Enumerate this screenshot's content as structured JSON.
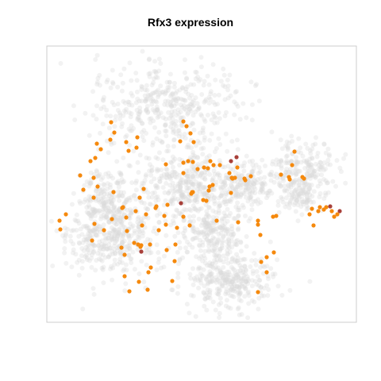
{
  "chart_data": {
    "type": "scatter",
    "title": "Rfx3 expression",
    "xlabel": "",
    "ylabel": "",
    "xlim": [
      0,
      390
    ],
    "ylim": [
      0,
      348
    ],
    "axes_visible": false,
    "grid": false,
    "legend": "none",
    "colors": {
      "background_cells": "#d9d9d9",
      "low_expression": "#f5890d",
      "high_expression": "#a8403a",
      "frame": "#cccccc"
    },
    "background_clusters": [
      {
        "name": "",
        "cx": 78,
        "cy": 245,
        "rx": 58,
        "ry": 46,
        "count": 360,
        "seed": 11
      },
      {
        "name": "",
        "cx": 80,
        "cy": 195,
        "rx": 45,
        "ry": 42,
        "count": 220,
        "seed": 12
      },
      {
        "name": "",
        "cx": 230,
        "cy": 295,
        "rx": 58,
        "ry": 40,
        "count": 320,
        "seed": 13
      },
      {
        "name": "",
        "cx": 205,
        "cy": 230,
        "rx": 45,
        "ry": 42,
        "count": 240,
        "seed": 14
      },
      {
        "name": "",
        "cx": 170,
        "cy": 175,
        "rx": 55,
        "ry": 42,
        "count": 300,
        "seed": 15
      },
      {
        "name": "",
        "cx": 248,
        "cy": 175,
        "rx": 36,
        "ry": 32,
        "count": 180,
        "seed": 16
      },
      {
        "name": "",
        "cx": 150,
        "cy": 75,
        "rx": 90,
        "ry": 55,
        "count": 420,
        "seed": 17
      },
      {
        "name": "",
        "cx": 320,
        "cy": 155,
        "rx": 48,
        "ry": 40,
        "count": 210,
        "seed": 18
      },
      {
        "name": "",
        "cx": 315,
        "cy": 190,
        "rx": 25,
        "ry": 22,
        "count": 80,
        "seed": 19
      }
    ],
    "points": [
      {
        "x": 127,
        "y": 307,
        "level": "low"
      },
      {
        "x": 131,
        "y": 279,
        "level": "low"
      },
      {
        "x": 161,
        "y": 271,
        "level": "low"
      },
      {
        "x": 98,
        "y": 263,
        "level": "low"
      },
      {
        "x": 94,
        "y": 254,
        "level": "low"
      },
      {
        "x": 115,
        "y": 250,
        "level": "low"
      },
      {
        "x": 119,
        "y": 251,
        "level": "low"
      },
      {
        "x": 110,
        "y": 248,
        "level": "low"
      },
      {
        "x": 119,
        "y": 259,
        "level": "high"
      },
      {
        "x": 141,
        "y": 232,
        "level": "low"
      },
      {
        "x": 150,
        "y": 225,
        "level": "low"
      },
      {
        "x": 57,
        "y": 245,
        "level": "low"
      },
      {
        "x": 60,
        "y": 224,
        "level": "low"
      },
      {
        "x": 24,
        "y": 212,
        "level": "low"
      },
      {
        "x": 17,
        "y": 231,
        "level": "low"
      },
      {
        "x": 16,
        "y": 220,
        "level": "low"
      },
      {
        "x": 72,
        "y": 232,
        "level": "low"
      },
      {
        "x": 101,
        "y": 233,
        "level": "low"
      },
      {
        "x": 120,
        "y": 226,
        "level": "low"
      },
      {
        "x": 82,
        "y": 218,
        "level": "low"
      },
      {
        "x": 95,
        "y": 204,
        "level": "low"
      },
      {
        "x": 112,
        "y": 208,
        "level": "low"
      },
      {
        "x": 125,
        "y": 212,
        "level": "low"
      },
      {
        "x": 137,
        "y": 204,
        "level": "low"
      },
      {
        "x": 138,
        "y": 202,
        "level": "low"
      },
      {
        "x": 152,
        "y": 200,
        "level": "low"
      },
      {
        "x": 84,
        "y": 184,
        "level": "low"
      },
      {
        "x": 59,
        "y": 191,
        "level": "low"
      },
      {
        "x": 42,
        "y": 163,
        "level": "low"
      },
      {
        "x": 64,
        "y": 177,
        "level": "low"
      },
      {
        "x": 59,
        "y": 166,
        "level": "low"
      },
      {
        "x": 46,
        "y": 181,
        "level": "low"
      },
      {
        "x": 55,
        "y": 145,
        "level": "low"
      },
      {
        "x": 61,
        "y": 141,
        "level": "low"
      },
      {
        "x": 68,
        "y": 130,
        "level": "low"
      },
      {
        "x": 63,
        "y": 123,
        "level": "low"
      },
      {
        "x": 80,
        "y": 118,
        "level": "low"
      },
      {
        "x": 85,
        "y": 109,
        "level": "low"
      },
      {
        "x": 81,
        "y": 96,
        "level": "low"
      },
      {
        "x": 100,
        "y": 121,
        "level": "low"
      },
      {
        "x": 103,
        "y": 132,
        "level": "low"
      },
      {
        "x": 114,
        "y": 115,
        "level": "low"
      },
      {
        "x": 113,
        "y": 128,
        "level": "low"
      },
      {
        "x": 168,
        "y": 120,
        "level": "low"
      },
      {
        "x": 185,
        "y": 121,
        "level": "low"
      },
      {
        "x": 181,
        "y": 110,
        "level": "low"
      },
      {
        "x": 176,
        "y": 101,
        "level": "low"
      },
      {
        "x": 172,
        "y": 95,
        "level": "low"
      },
      {
        "x": 172,
        "y": 147,
        "level": "low"
      },
      {
        "x": 172,
        "y": 160,
        "level": "low"
      },
      {
        "x": 178,
        "y": 145,
        "level": "low"
      },
      {
        "x": 184,
        "y": 146,
        "level": "low"
      },
      {
        "x": 190,
        "y": 155,
        "level": "low"
      },
      {
        "x": 198,
        "y": 153,
        "level": "low"
      },
      {
        "x": 203,
        "y": 154,
        "level": "low"
      },
      {
        "x": 210,
        "y": 150,
        "level": "low"
      },
      {
        "x": 206,
        "y": 145,
        "level": "low"
      },
      {
        "x": 218,
        "y": 150,
        "level": "low"
      },
      {
        "x": 230,
        "y": 160,
        "level": "low"
      },
      {
        "x": 232,
        "y": 145,
        "level": "high"
      },
      {
        "x": 239,
        "y": 140,
        "level": "high"
      },
      {
        "x": 205,
        "y": 177,
        "level": "low"
      },
      {
        "x": 234,
        "y": 167,
        "level": "low"
      },
      {
        "x": 232,
        "y": 185,
        "level": "low"
      },
      {
        "x": 233,
        "y": 166,
        "level": "low"
      },
      {
        "x": 257,
        "y": 164,
        "level": "low"
      },
      {
        "x": 250,
        "y": 169,
        "level": "low"
      },
      {
        "x": 237,
        "y": 166,
        "level": "low"
      },
      {
        "x": 240,
        "y": 153,
        "level": "low"
      },
      {
        "x": 249,
        "y": 167,
        "level": "low"
      },
      {
        "x": 204,
        "y": 182,
        "level": "low"
      },
      {
        "x": 184,
        "y": 184,
        "level": "low"
      },
      {
        "x": 182,
        "y": 186,
        "level": "low"
      },
      {
        "x": 172,
        "y": 215,
        "level": "low"
      },
      {
        "x": 169,
        "y": 198,
        "level": "high"
      },
      {
        "x": 180,
        "y": 226,
        "level": "low"
      },
      {
        "x": 164,
        "y": 229,
        "level": "low"
      },
      {
        "x": 148,
        "y": 214,
        "level": "low"
      },
      {
        "x": 122,
        "y": 180,
        "level": "low"
      },
      {
        "x": 117,
        "y": 191,
        "level": "low"
      },
      {
        "x": 96,
        "y": 203,
        "level": "low"
      },
      {
        "x": 100,
        "y": 216,
        "level": "low"
      },
      {
        "x": 150,
        "y": 149,
        "level": "low"
      },
      {
        "x": 183,
        "y": 184,
        "level": "low"
      },
      {
        "x": 197,
        "y": 194,
        "level": "low"
      },
      {
        "x": 201,
        "y": 195,
        "level": "low"
      },
      {
        "x": 209,
        "y": 175,
        "level": "low"
      },
      {
        "x": 214,
        "y": 220,
        "level": "low"
      },
      {
        "x": 241,
        "y": 222,
        "level": "low"
      },
      {
        "x": 266,
        "y": 225,
        "level": "low"
      },
      {
        "x": 285,
        "y": 215,
        "level": "low"
      },
      {
        "x": 295,
        "y": 162,
        "level": "low"
      },
      {
        "x": 305,
        "y": 165,
        "level": "low"
      },
      {
        "x": 306,
        "y": 168,
        "level": "low"
      },
      {
        "x": 309,
        "y": 150,
        "level": "low"
      },
      {
        "x": 312,
        "y": 133,
        "level": "low"
      },
      {
        "x": 322,
        "y": 165,
        "level": "low"
      },
      {
        "x": 324,
        "y": 167,
        "level": "low"
      },
      {
        "x": 334,
        "y": 205,
        "level": "low"
      },
      {
        "x": 331,
        "y": 212,
        "level": "low"
      },
      {
        "x": 342,
        "y": 208,
        "level": "low"
      },
      {
        "x": 344,
        "y": 203,
        "level": "low"
      },
      {
        "x": 349,
        "y": 206,
        "level": "low"
      },
      {
        "x": 352,
        "y": 203,
        "level": "low"
      },
      {
        "x": 359,
        "y": 208,
        "level": "low"
      },
      {
        "x": 357,
        "y": 202,
        "level": "high"
      },
      {
        "x": 362,
        "y": 215,
        "level": "low"
      },
      {
        "x": 369,
        "y": 208,
        "level": "high"
      },
      {
        "x": 366,
        "y": 212,
        "level": "low"
      },
      {
        "x": 336,
        "y": 226,
        "level": "low"
      },
      {
        "x": 289,
        "y": 214,
        "level": "low"
      },
      {
        "x": 266,
        "y": 220,
        "level": "low"
      },
      {
        "x": 128,
        "y": 285,
        "level": "low"
      },
      {
        "x": 130,
        "y": 250,
        "level": "low"
      },
      {
        "x": 98,
        "y": 290,
        "level": "low"
      },
      {
        "x": 116,
        "y": 297,
        "level": "low"
      },
      {
        "x": 118,
        "y": 253,
        "level": "low"
      },
      {
        "x": 151,
        "y": 257,
        "level": "low"
      },
      {
        "x": 162,
        "y": 250,
        "level": "low"
      },
      {
        "x": 158,
        "y": 296,
        "level": "low"
      },
      {
        "x": 104,
        "y": 309,
        "level": "low"
      },
      {
        "x": 266,
        "y": 310,
        "level": "low"
      },
      {
        "x": 270,
        "y": 272,
        "level": "low"
      },
      {
        "x": 277,
        "y": 266,
        "level": "low"
      },
      {
        "x": 286,
        "y": 260,
        "level": "low"
      },
      {
        "x": 269,
        "y": 238,
        "level": "low"
      },
      {
        "x": 277,
        "y": 285,
        "level": "low"
      }
    ]
  }
}
